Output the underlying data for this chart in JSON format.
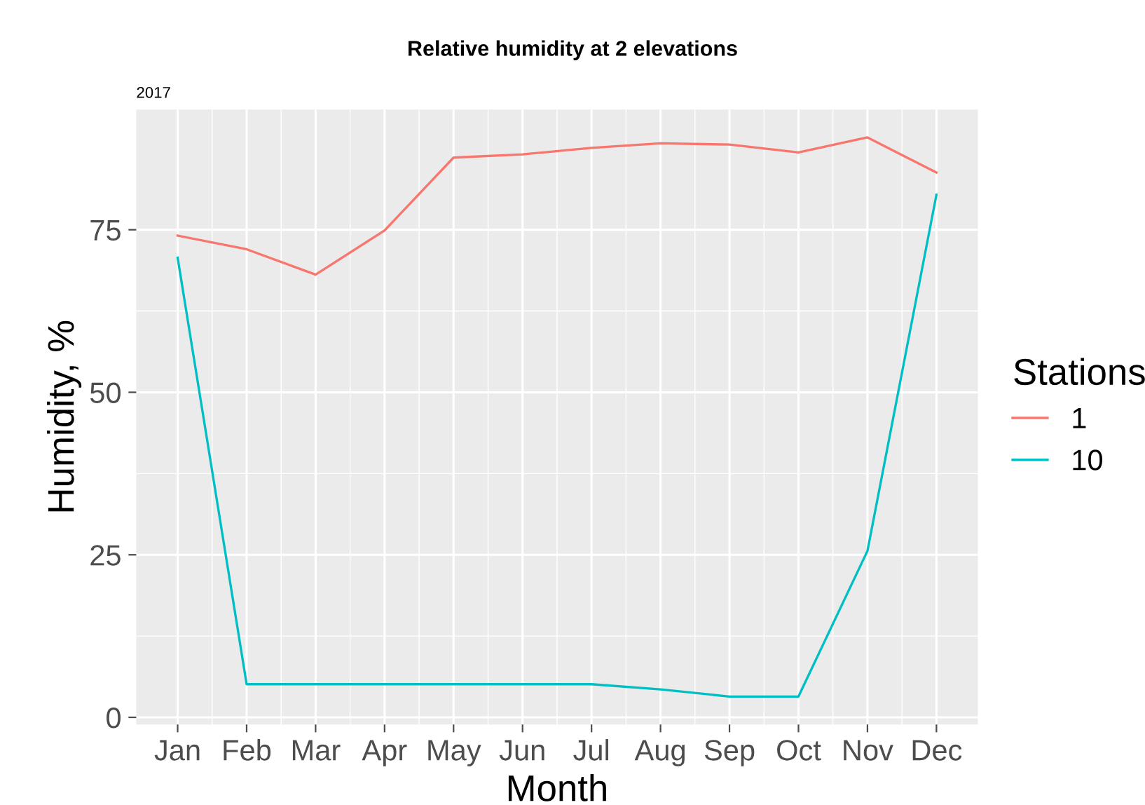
{
  "chart_data": {
    "type": "line",
    "title": "Relative humidity at 2 elevations",
    "subtitle": "2017",
    "xlabel": "Month",
    "ylabel": "Humidity, %",
    "legend_title": "Stations",
    "categories": [
      "Jan",
      "Feb",
      "Mar",
      "Apr",
      "May",
      "Jun",
      "Jul",
      "Aug",
      "Sep",
      "Oct",
      "Nov",
      "Dec"
    ],
    "series": [
      {
        "name": "1",
        "color": "#f8766d",
        "values": [
          74.1,
          72.0,
          68.1,
          74.9,
          86.1,
          86.6,
          87.6,
          88.3,
          88.1,
          86.9,
          89.2,
          83.8
        ]
      },
      {
        "name": "10",
        "color": "#00bfc4",
        "values": [
          70.7,
          5.1,
          5.1,
          5.1,
          5.1,
          5.1,
          5.1,
          4.3,
          3.2,
          3.2,
          25.6,
          80.4
        ]
      }
    ],
    "ylim": [
      -1.1,
      93.5
    ],
    "yticks": [
      0,
      25,
      50,
      75
    ],
    "grid": true,
    "legend": "right",
    "marker": "none",
    "line_style": "solid"
  }
}
